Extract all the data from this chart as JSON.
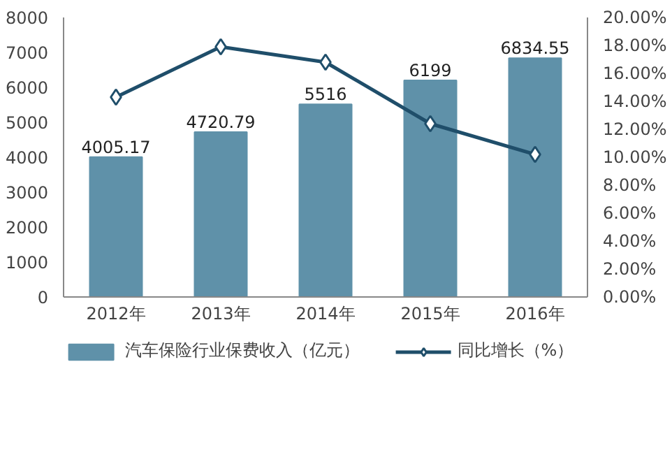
{
  "chart_data": {
    "type": "bar",
    "categories": [
      "2012年",
      "2013年",
      "2014年",
      "2015年",
      "2016年"
    ],
    "series": [
      {
        "name": "汽车保险行业保费收入（亿元）",
        "color": "#5f91a9",
        "values": [
          4005.17,
          4720.79,
          5516,
          6199,
          6834.55
        ],
        "value_labels": [
          "4005.17",
          "4720.79",
          "5516",
          "6199",
          "6834.55"
        ]
      },
      {
        "name": "同比增长（%）",
        "type": "line",
        "axis": "y2",
        "color": "#1f4e6a",
        "marker": "diamond",
        "values": [
          14.3,
          17.9,
          16.8,
          12.4,
          10.2
        ]
      }
    ],
    "ylim": [
      0,
      8000
    ],
    "yticks": [
      0,
      1000,
      2000,
      3000,
      4000,
      5000,
      6000,
      7000,
      8000
    ],
    "y2lim": [
      0,
      20
    ],
    "y2ticks": [
      {
        "value": 0,
        "label": "0.00%"
      },
      {
        "value": 2,
        "label": "2.00%"
      },
      {
        "value": 4,
        "label": "4.00%"
      },
      {
        "value": 6,
        "label": "6.00%"
      },
      {
        "value": 8,
        "label": "8.00%"
      },
      {
        "value": 10,
        "label": "10.00%"
      },
      {
        "value": 12,
        "label": "12.00%"
      },
      {
        "value": 14,
        "label": "14.00%"
      },
      {
        "value": 16,
        "label": "16.00%"
      },
      {
        "value": 18,
        "label": "18.00%"
      },
      {
        "value": 20,
        "label": "20.00%"
      }
    ],
    "grid": false,
    "legend": "bottom"
  }
}
